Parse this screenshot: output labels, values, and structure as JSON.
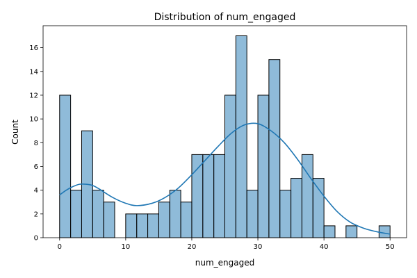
{
  "chart_data": {
    "type": "histogram",
    "title": "Distribution of num_engaged",
    "xlabel": "num_engaged",
    "ylabel": "Count",
    "xlim": [
      -2.5,
      52.5
    ],
    "ylim": [
      0,
      17.85
    ],
    "xticks": [
      0,
      10,
      20,
      30,
      40,
      50
    ],
    "yticks": [
      0,
      2,
      4,
      6,
      8,
      10,
      12,
      14,
      16
    ],
    "bar_color": "#1f77b4",
    "bar_fill_opacity": 0.5,
    "kde_color": "#1f77b4",
    "bins": [
      {
        "x0": 0.0,
        "x1": 1.667,
        "count": 12
      },
      {
        "x0": 1.667,
        "x1": 3.333,
        "count": 4
      },
      {
        "x0": 3.333,
        "x1": 5.0,
        "count": 9
      },
      {
        "x0": 5.0,
        "x1": 6.667,
        "count": 4
      },
      {
        "x0": 6.667,
        "x1": 8.333,
        "count": 3
      },
      {
        "x0": 8.333,
        "x1": 10.0,
        "count": 0
      },
      {
        "x0": 10.0,
        "x1": 11.667,
        "count": 2
      },
      {
        "x0": 11.667,
        "x1": 13.333,
        "count": 2
      },
      {
        "x0": 13.333,
        "x1": 15.0,
        "count": 2
      },
      {
        "x0": 15.0,
        "x1": 16.667,
        "count": 3
      },
      {
        "x0": 16.667,
        "x1": 18.333,
        "count": 4
      },
      {
        "x0": 18.333,
        "x1": 20.0,
        "count": 3
      },
      {
        "x0": 20.0,
        "x1": 21.667,
        "count": 7
      },
      {
        "x0": 21.667,
        "x1": 23.333,
        "count": 7
      },
      {
        "x0": 23.333,
        "x1": 25.0,
        "count": 7
      },
      {
        "x0": 25.0,
        "x1": 26.667,
        "count": 12
      },
      {
        "x0": 26.667,
        "x1": 28.333,
        "count": 17
      },
      {
        "x0": 28.333,
        "x1": 30.0,
        "count": 4
      },
      {
        "x0": 30.0,
        "x1": 31.667,
        "count": 12
      },
      {
        "x0": 31.667,
        "x1": 33.333,
        "count": 15
      },
      {
        "x0": 33.333,
        "x1": 35.0,
        "count": 4
      },
      {
        "x0": 35.0,
        "x1": 36.667,
        "count": 5
      },
      {
        "x0": 36.667,
        "x1": 38.333,
        "count": 7
      },
      {
        "x0": 38.333,
        "x1": 40.0,
        "count": 5
      },
      {
        "x0": 40.0,
        "x1": 41.667,
        "count": 1
      },
      {
        "x0": 41.667,
        "x1": 43.333,
        "count": 0
      },
      {
        "x0": 43.333,
        "x1": 45.0,
        "count": 1
      },
      {
        "x0": 45.0,
        "x1": 46.667,
        "count": 0
      },
      {
        "x0": 46.667,
        "x1": 48.333,
        "count": 0
      },
      {
        "x0": 48.333,
        "x1": 50.0,
        "count": 1
      }
    ],
    "kde": {
      "x": [
        0,
        1,
        2,
        3,
        4,
        5,
        6,
        8,
        10,
        11.7,
        14,
        16,
        18,
        20,
        22,
        24,
        26,
        28,
        30,
        32,
        34,
        36,
        38,
        40,
        42,
        44,
        46,
        48,
        50
      ],
      "y": [
        3.6,
        4.0,
        4.3,
        4.5,
        4.5,
        4.4,
        4.1,
        3.4,
        2.9,
        2.7,
        2.9,
        3.4,
        4.2,
        5.3,
        6.5,
        7.7,
        8.8,
        9.5,
        9.6,
        9.0,
        8.0,
        6.6,
        5.0,
        3.5,
        2.2,
        1.3,
        0.8,
        0.5,
        0.3
      ]
    }
  }
}
